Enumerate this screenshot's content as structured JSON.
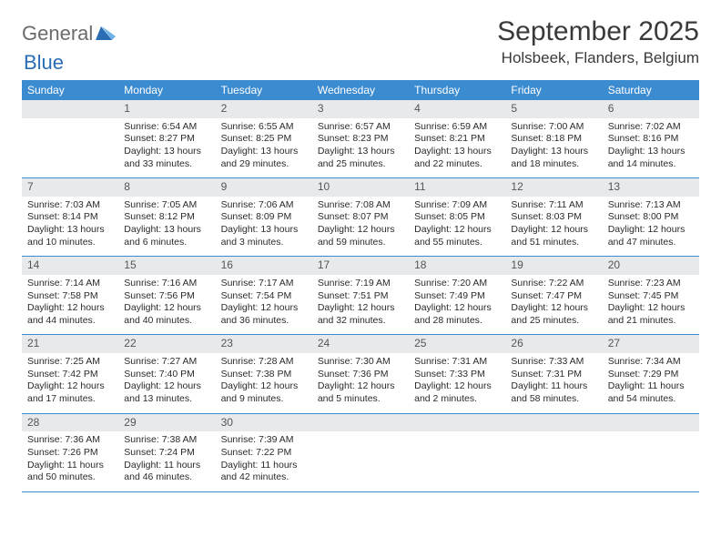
{
  "logo": {
    "text1": "General",
    "text2": "Blue"
  },
  "title": "September 2025",
  "location": "Holsbeek, Flanders, Belgium",
  "colors": {
    "header_bg": "#3b8bd1",
    "header_text": "#ffffff",
    "daynum_bg": "#e7e9eb",
    "daynum_text": "#555555",
    "body_text": "#2a2a2a",
    "rule": "#3b8bd1",
    "logo_gray": "#6b6b6b",
    "logo_blue": "#2a6db3"
  },
  "weekdays": [
    "Sunday",
    "Monday",
    "Tuesday",
    "Wednesday",
    "Thursday",
    "Friday",
    "Saturday"
  ],
  "weeks": [
    [
      {
        "n": "",
        "sr": "",
        "ss": "",
        "dl": ""
      },
      {
        "n": "1",
        "sr": "Sunrise: 6:54 AM",
        "ss": "Sunset: 8:27 PM",
        "dl": "Daylight: 13 hours and 33 minutes."
      },
      {
        "n": "2",
        "sr": "Sunrise: 6:55 AM",
        "ss": "Sunset: 8:25 PM",
        "dl": "Daylight: 13 hours and 29 minutes."
      },
      {
        "n": "3",
        "sr": "Sunrise: 6:57 AM",
        "ss": "Sunset: 8:23 PM",
        "dl": "Daylight: 13 hours and 25 minutes."
      },
      {
        "n": "4",
        "sr": "Sunrise: 6:59 AM",
        "ss": "Sunset: 8:21 PM",
        "dl": "Daylight: 13 hours and 22 minutes."
      },
      {
        "n": "5",
        "sr": "Sunrise: 7:00 AM",
        "ss": "Sunset: 8:18 PM",
        "dl": "Daylight: 13 hours and 18 minutes."
      },
      {
        "n": "6",
        "sr": "Sunrise: 7:02 AM",
        "ss": "Sunset: 8:16 PM",
        "dl": "Daylight: 13 hours and 14 minutes."
      }
    ],
    [
      {
        "n": "7",
        "sr": "Sunrise: 7:03 AM",
        "ss": "Sunset: 8:14 PM",
        "dl": "Daylight: 13 hours and 10 minutes."
      },
      {
        "n": "8",
        "sr": "Sunrise: 7:05 AM",
        "ss": "Sunset: 8:12 PM",
        "dl": "Daylight: 13 hours and 6 minutes."
      },
      {
        "n": "9",
        "sr": "Sunrise: 7:06 AM",
        "ss": "Sunset: 8:09 PM",
        "dl": "Daylight: 13 hours and 3 minutes."
      },
      {
        "n": "10",
        "sr": "Sunrise: 7:08 AM",
        "ss": "Sunset: 8:07 PM",
        "dl": "Daylight: 12 hours and 59 minutes."
      },
      {
        "n": "11",
        "sr": "Sunrise: 7:09 AM",
        "ss": "Sunset: 8:05 PM",
        "dl": "Daylight: 12 hours and 55 minutes."
      },
      {
        "n": "12",
        "sr": "Sunrise: 7:11 AM",
        "ss": "Sunset: 8:03 PM",
        "dl": "Daylight: 12 hours and 51 minutes."
      },
      {
        "n": "13",
        "sr": "Sunrise: 7:13 AM",
        "ss": "Sunset: 8:00 PM",
        "dl": "Daylight: 12 hours and 47 minutes."
      }
    ],
    [
      {
        "n": "14",
        "sr": "Sunrise: 7:14 AM",
        "ss": "Sunset: 7:58 PM",
        "dl": "Daylight: 12 hours and 44 minutes."
      },
      {
        "n": "15",
        "sr": "Sunrise: 7:16 AM",
        "ss": "Sunset: 7:56 PM",
        "dl": "Daylight: 12 hours and 40 minutes."
      },
      {
        "n": "16",
        "sr": "Sunrise: 7:17 AM",
        "ss": "Sunset: 7:54 PM",
        "dl": "Daylight: 12 hours and 36 minutes."
      },
      {
        "n": "17",
        "sr": "Sunrise: 7:19 AM",
        "ss": "Sunset: 7:51 PM",
        "dl": "Daylight: 12 hours and 32 minutes."
      },
      {
        "n": "18",
        "sr": "Sunrise: 7:20 AM",
        "ss": "Sunset: 7:49 PM",
        "dl": "Daylight: 12 hours and 28 minutes."
      },
      {
        "n": "19",
        "sr": "Sunrise: 7:22 AM",
        "ss": "Sunset: 7:47 PM",
        "dl": "Daylight: 12 hours and 25 minutes."
      },
      {
        "n": "20",
        "sr": "Sunrise: 7:23 AM",
        "ss": "Sunset: 7:45 PM",
        "dl": "Daylight: 12 hours and 21 minutes."
      }
    ],
    [
      {
        "n": "21",
        "sr": "Sunrise: 7:25 AM",
        "ss": "Sunset: 7:42 PM",
        "dl": "Daylight: 12 hours and 17 minutes."
      },
      {
        "n": "22",
        "sr": "Sunrise: 7:27 AM",
        "ss": "Sunset: 7:40 PM",
        "dl": "Daylight: 12 hours and 13 minutes."
      },
      {
        "n": "23",
        "sr": "Sunrise: 7:28 AM",
        "ss": "Sunset: 7:38 PM",
        "dl": "Daylight: 12 hours and 9 minutes."
      },
      {
        "n": "24",
        "sr": "Sunrise: 7:30 AM",
        "ss": "Sunset: 7:36 PM",
        "dl": "Daylight: 12 hours and 5 minutes."
      },
      {
        "n": "25",
        "sr": "Sunrise: 7:31 AM",
        "ss": "Sunset: 7:33 PM",
        "dl": "Daylight: 12 hours and 2 minutes."
      },
      {
        "n": "26",
        "sr": "Sunrise: 7:33 AM",
        "ss": "Sunset: 7:31 PM",
        "dl": "Daylight: 11 hours and 58 minutes."
      },
      {
        "n": "27",
        "sr": "Sunrise: 7:34 AM",
        "ss": "Sunset: 7:29 PM",
        "dl": "Daylight: 11 hours and 54 minutes."
      }
    ],
    [
      {
        "n": "28",
        "sr": "Sunrise: 7:36 AM",
        "ss": "Sunset: 7:26 PM",
        "dl": "Daylight: 11 hours and 50 minutes."
      },
      {
        "n": "29",
        "sr": "Sunrise: 7:38 AM",
        "ss": "Sunset: 7:24 PM",
        "dl": "Daylight: 11 hours and 46 minutes."
      },
      {
        "n": "30",
        "sr": "Sunrise: 7:39 AM",
        "ss": "Sunset: 7:22 PM",
        "dl": "Daylight: 11 hours and 42 minutes."
      },
      {
        "n": "",
        "sr": "",
        "ss": "",
        "dl": ""
      },
      {
        "n": "",
        "sr": "",
        "ss": "",
        "dl": ""
      },
      {
        "n": "",
        "sr": "",
        "ss": "",
        "dl": ""
      },
      {
        "n": "",
        "sr": "",
        "ss": "",
        "dl": ""
      }
    ]
  ]
}
